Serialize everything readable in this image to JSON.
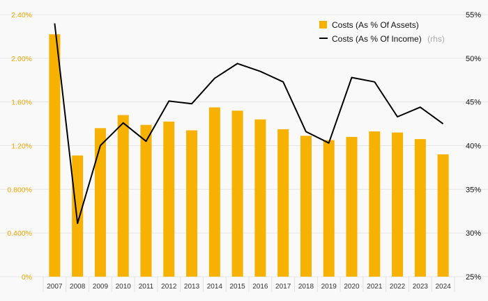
{
  "chart_data": {
    "type": "bar+line",
    "categories": [
      "2007",
      "2008",
      "2009",
      "2010",
      "2011",
      "2012",
      "2013",
      "2014",
      "2015",
      "2016",
      "2017",
      "2018",
      "2019",
      "2020",
      "2021",
      "2022",
      "2023",
      "2024"
    ],
    "series": [
      {
        "name": "Costs (As % Of Assets)",
        "type": "bar",
        "axis": "left",
        "color": "#f7b100",
        "values": [
          2.22,
          1.11,
          1.36,
          1.48,
          1.39,
          1.42,
          1.34,
          1.55,
          1.52,
          1.44,
          1.35,
          1.29,
          1.25,
          1.28,
          1.33,
          1.32,
          1.26,
          1.12
        ]
      },
      {
        "name": "Costs (As % Of Income)",
        "type": "line",
        "axis": "right",
        "color": "#000000",
        "values": [
          54.0,
          31.1,
          40.0,
          42.6,
          40.5,
          45.1,
          44.8,
          47.7,
          49.4,
          48.5,
          47.3,
          41.6,
          40.3,
          47.8,
          47.3,
          43.3,
          44.4,
          42.5
        ]
      }
    ],
    "left_axis": {
      "ylim": [
        0,
        2.4
      ],
      "ticks": [
        0,
        0.4,
        0.8,
        1.2,
        1.6,
        2.0,
        2.4
      ],
      "tick_labels": [
        "0%",
        "0.400%",
        "0.800%",
        "1.20%",
        "1.60%",
        "2.00%",
        "2.40%"
      ],
      "color": "#f0a800"
    },
    "right_axis": {
      "ylim": [
        25,
        55
      ],
      "ticks": [
        25,
        30,
        35,
        40,
        45,
        50,
        55
      ],
      "tick_labels": [
        "25%",
        "30%",
        "35%",
        "40%",
        "45%",
        "50%",
        "55%"
      ],
      "color": "#111111"
    },
    "legend": {
      "placement": "top-right",
      "items": [
        {
          "label": "Costs (As % Of Assets)",
          "note": ""
        },
        {
          "label": "Costs (As % Of Income)",
          "note": "(rhs)"
        }
      ]
    },
    "grid": true,
    "title": "",
    "xlabel": "",
    "ylabel": ""
  }
}
